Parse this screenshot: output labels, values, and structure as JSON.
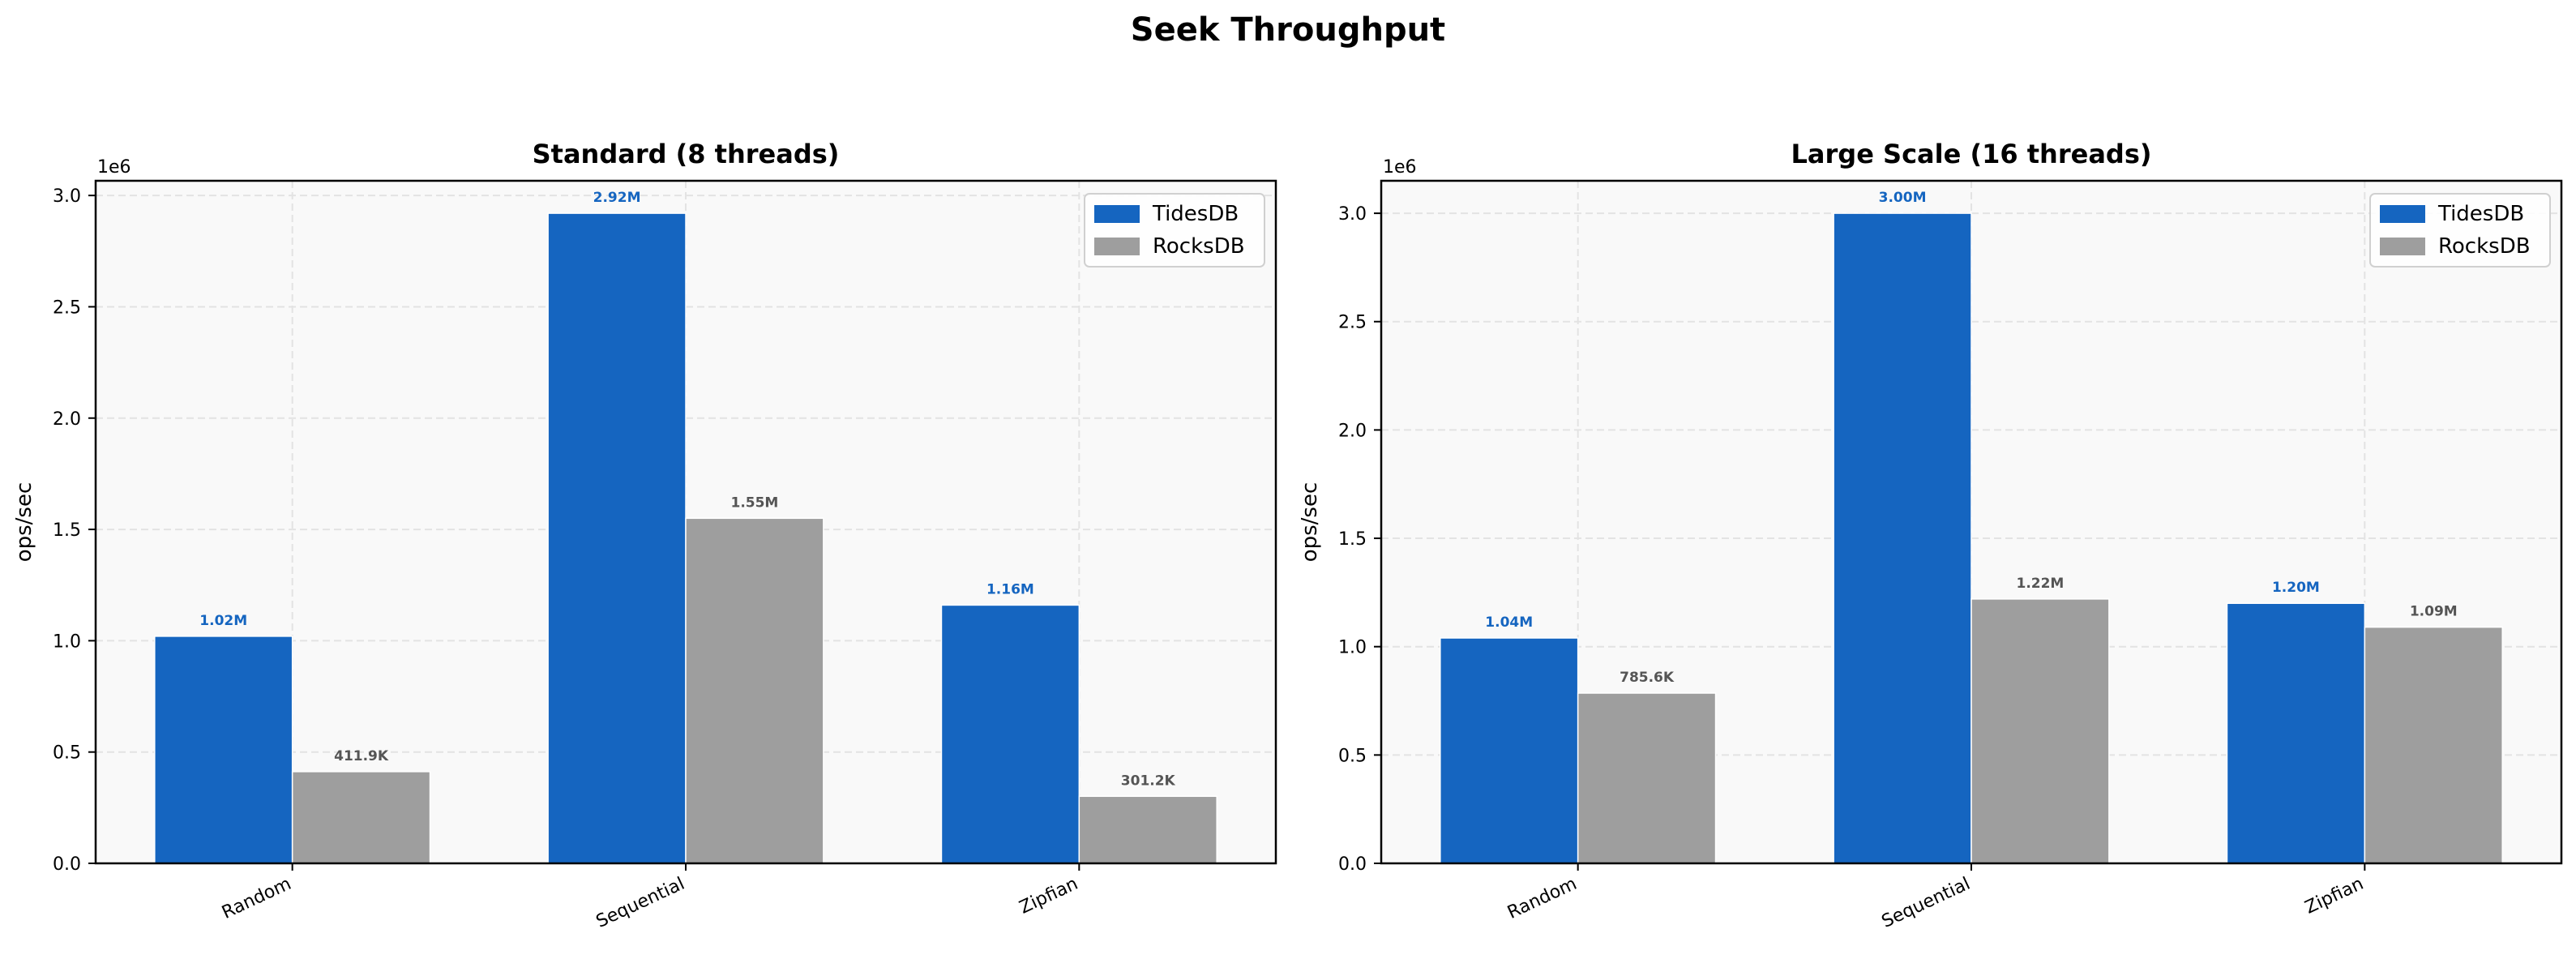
{
  "chart_data": {
    "title": "Seek Throughput",
    "panels": [
      {
        "type": "bar",
        "title": "Standard (8 threads)",
        "ylabel": "ops/sec",
        "yoffset_label": "1e6",
        "categories": [
          "Random",
          "Sequential",
          "Zipfian"
        ],
        "ylim": [
          0,
          3066000
        ],
        "yticks": [
          0,
          500000,
          1000000,
          1500000,
          2000000,
          2500000,
          3000000
        ],
        "ytick_labels": [
          "0.0",
          "0.5",
          "1.0",
          "1.5",
          "2.0",
          "2.5",
          "3.0"
        ],
        "grid": true,
        "legend": "top-right",
        "series": [
          {
            "name": "TidesDB",
            "color": "#1565c0",
            "label_color": "#1565c0",
            "values": [
              1020000,
              2920000,
              1160000
            ],
            "labels": [
              "1.02M",
              "2.92M",
              "1.16M"
            ]
          },
          {
            "name": "RocksDB",
            "color": "#9e9e9e",
            "label_color": "#555555",
            "values": [
              411900,
              1550000,
              301200
            ],
            "labels": [
              "411.9K",
              "1.55M",
              "301.2K"
            ]
          }
        ]
      },
      {
        "type": "bar",
        "title": "Large Scale (16 threads)",
        "ylabel": "ops/sec",
        "yoffset_label": "1e6",
        "categories": [
          "Random",
          "Sequential",
          "Zipfian"
        ],
        "ylim": [
          0,
          3150000
        ],
        "yticks": [
          0,
          500000,
          1000000,
          1500000,
          2000000,
          2500000,
          3000000
        ],
        "ytick_labels": [
          "0.0",
          "0.5",
          "1.0",
          "1.5",
          "2.0",
          "2.5",
          "3.0"
        ],
        "grid": true,
        "legend": "top-right",
        "series": [
          {
            "name": "TidesDB",
            "color": "#1565c0",
            "label_color": "#1565c0",
            "values": [
              1040000,
              3000000,
              1200000
            ],
            "labels": [
              "1.04M",
              "3.00M",
              "1.20M"
            ]
          },
          {
            "name": "RocksDB",
            "color": "#9e9e9e",
            "label_color": "#555555",
            "values": [
              785600,
              1220000,
              1090000
            ],
            "labels": [
              "785.6K",
              "1.22M",
              "1.09M"
            ]
          }
        ]
      }
    ]
  }
}
